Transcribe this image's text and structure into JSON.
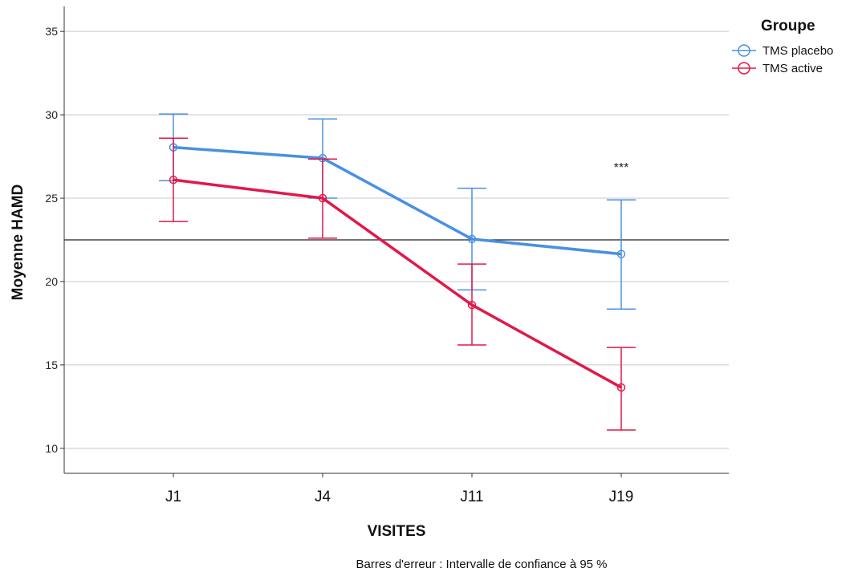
{
  "chart_data": {
    "type": "line",
    "title": "",
    "xlabel": "VISITES",
    "ylabel": "Moyenne HAMD",
    "categories": [
      "J1",
      "J4",
      "J11",
      "J19"
    ],
    "ylim": [
      8.5,
      36.5
    ],
    "yticks": [
      10,
      15,
      20,
      25,
      30,
      35
    ],
    "grid": true,
    "reference_line": 22.5,
    "legend": {
      "title": "Groupe",
      "position": "top-right"
    },
    "series": [
      {
        "name": "TMS placebo",
        "color": "#4a90e2",
        "values": [
          28.05,
          27.4,
          22.55,
          21.65
        ],
        "ci_lower": [
          26.05,
          25.0,
          19.5,
          18.35
        ],
        "ci_upper": [
          30.05,
          29.75,
          25.6,
          24.9
        ]
      },
      {
        "name": "TMS active",
        "color": "#e0194a",
        "values": [
          26.1,
          25.0,
          18.6,
          13.65
        ],
        "ci_lower": [
          23.6,
          22.6,
          16.2,
          11.1
        ],
        "ci_upper": [
          28.6,
          27.35,
          21.05,
          16.05
        ]
      }
    ],
    "annotations": [
      {
        "category": "J19",
        "y": 26.6,
        "text": "***"
      }
    ],
    "note": "Barres d'erreur : Intervalle de confiance à 95 %"
  }
}
